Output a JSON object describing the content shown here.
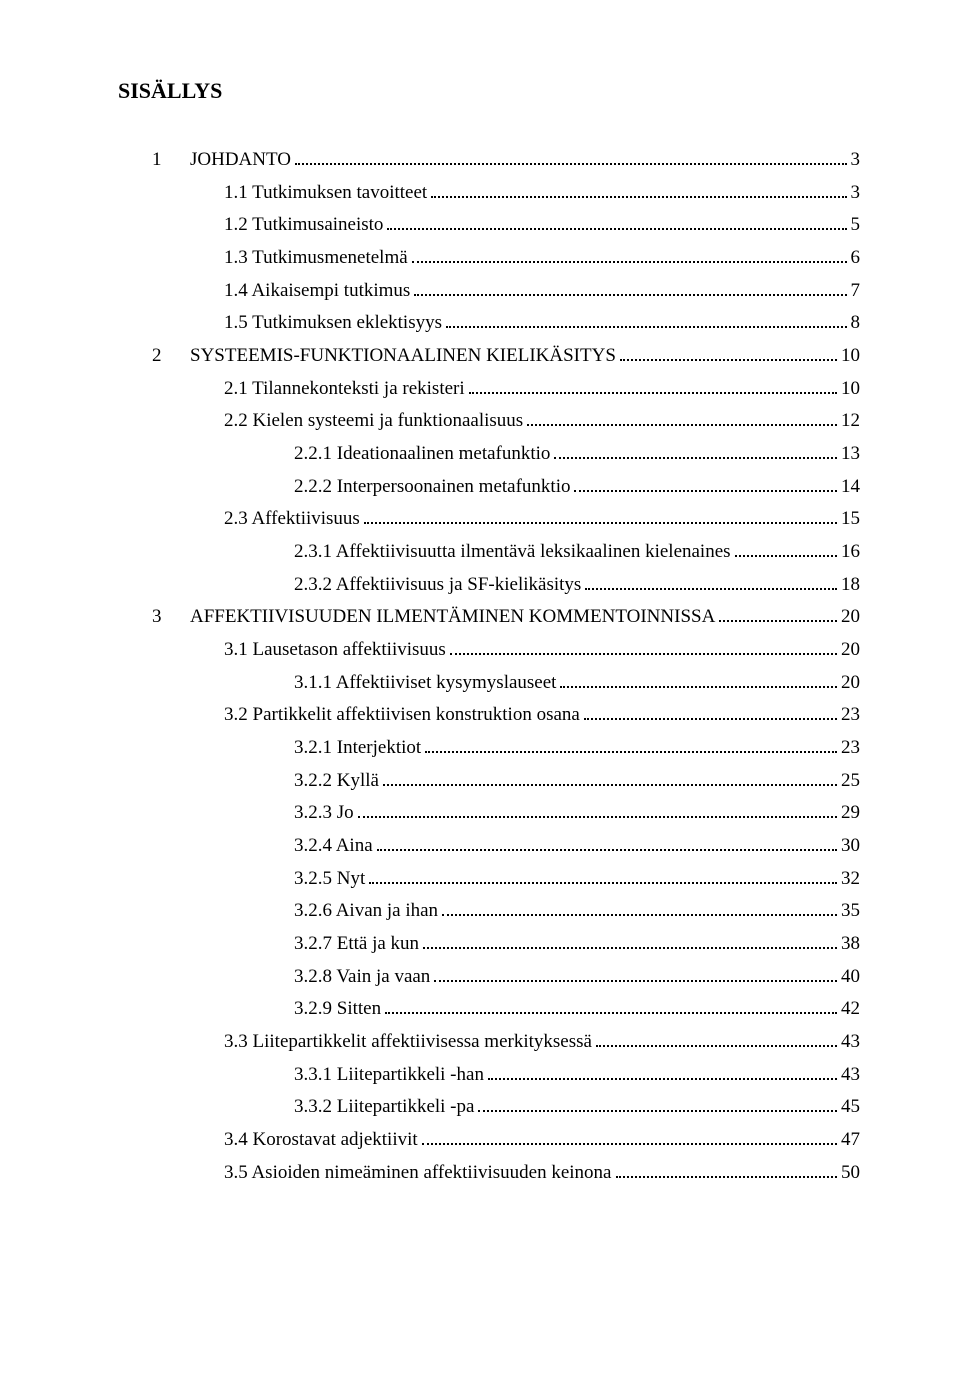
{
  "title": "SISÄLLYS",
  "toc": [
    {
      "level": 0,
      "num": "1",
      "label": "JOHDANTO",
      "page": "3"
    },
    {
      "level": 1,
      "label": "1.1 Tutkimuksen tavoitteet",
      "page": "3"
    },
    {
      "level": 1,
      "label": "1.2 Tutkimusaineisto",
      "page": "5"
    },
    {
      "level": 1,
      "label": "1.3 Tutkimusmenetelmä",
      "page": "6"
    },
    {
      "level": 1,
      "label": "1.4 Aikaisempi tutkimus",
      "page": "7"
    },
    {
      "level": 1,
      "label": "1.5 Tutkimuksen eklektisyys",
      "page": "8"
    },
    {
      "level": 0,
      "num": "2",
      "label": "SYSTEEMIS-FUNKTIONAALINEN KIELIKÄSITYS",
      "page": "10"
    },
    {
      "level": 1,
      "label": "2.1 Tilannekonteksti ja rekisteri",
      "page": "10"
    },
    {
      "level": 1,
      "label": "2.2 Kielen systeemi ja funktionaalisuus",
      "page": "12"
    },
    {
      "level": 2,
      "label": "2.2.1 Ideationaalinen metafunktio",
      "page": "13"
    },
    {
      "level": 2,
      "label": "2.2.2 Interpersoonainen metafunktio",
      "page": "14"
    },
    {
      "level": 1,
      "label": "2.3 Affektiivisuus",
      "page": "15"
    },
    {
      "level": 2,
      "label": "2.3.1 Affektiivisuutta ilmentävä leksikaalinen kielenaines",
      "page": "16"
    },
    {
      "level": 2,
      "label": "2.3.2 Affektiivisuus ja SF-kielikäsitys",
      "page": "18"
    },
    {
      "level": 0,
      "num": "3",
      "label": "AFFEKTIIVISUUDEN ILMENTÄMINEN KOMMENTOINNISSA",
      "page": "20"
    },
    {
      "level": 1,
      "label": "3.1 Lausetason affektiivisuus",
      "page": "20"
    },
    {
      "level": 2,
      "label": "3.1.1 Affektiiviset kysymyslauseet",
      "page": "20"
    },
    {
      "level": 1,
      "label": "3.2 Partikkelit affektiivisen konstruktion osana",
      "page": "23"
    },
    {
      "level": 2,
      "label": "3.2.1 Interjektiot",
      "page": "23"
    },
    {
      "level": 2,
      "label": "3.2.2 Kyllä",
      "page": "25"
    },
    {
      "level": 2,
      "label": "3.2.3 Jo",
      "page": "29"
    },
    {
      "level": 2,
      "label": "3.2.4 Aina",
      "page": "30"
    },
    {
      "level": 2,
      "label": "3.2.5 Nyt",
      "page": "32"
    },
    {
      "level": 2,
      "label": "3.2.6 Aivan ja ihan",
      "page": "35"
    },
    {
      "level": 2,
      "label": "3.2.7 Että ja kun",
      "page": "38"
    },
    {
      "level": 2,
      "label": "3.2.8 Vain ja vaan",
      "page": "40"
    },
    {
      "level": 2,
      "label": "3.2.9 Sitten",
      "page": "42"
    },
    {
      "level": 1,
      "label": "3.3 Liitepartikkelit affektiivisessa merkityksessä",
      "page": "43"
    },
    {
      "level": 2,
      "label": "3.3.1 Liitepartikkeli -han",
      "page": "43"
    },
    {
      "level": 2,
      "label": "3.3.2 Liitepartikkeli -pa",
      "page": "45"
    },
    {
      "level": 1,
      "label": "3.4 Korostavat adjektiivit",
      "page": "47"
    },
    {
      "level": 1,
      "label": "3.5 Asioiden nimeäminen affektiivisuuden keinona",
      "page": "50"
    }
  ]
}
